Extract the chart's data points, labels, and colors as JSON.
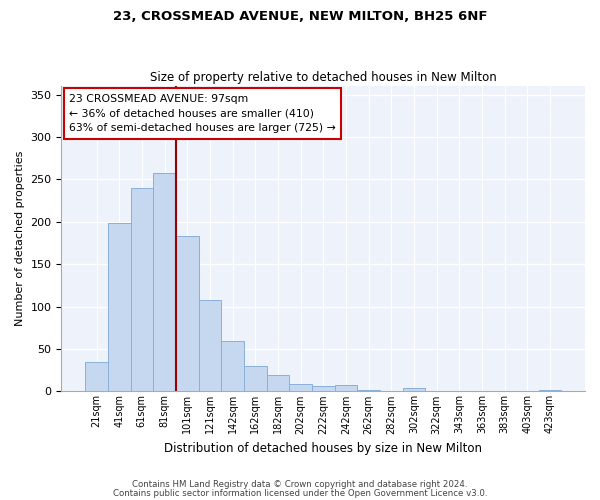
{
  "title1": "23, CROSSMEAD AVENUE, NEW MILTON, BH25 6NF",
  "title2": "Size of property relative to detached houses in New Milton",
  "xlabel": "Distribution of detached houses by size in New Milton",
  "ylabel": "Number of detached properties",
  "categories": [
    "21sqm",
    "41sqm",
    "61sqm",
    "81sqm",
    "101sqm",
    "121sqm",
    "142sqm",
    "162sqm",
    "182sqm",
    "202sqm",
    "222sqm",
    "242sqm",
    "262sqm",
    "282sqm",
    "302sqm",
    "322sqm",
    "343sqm",
    "363sqm",
    "383sqm",
    "403sqm",
    "423sqm"
  ],
  "values": [
    35,
    198,
    240,
    258,
    183,
    108,
    59,
    30,
    19,
    9,
    6,
    7,
    2,
    0,
    4,
    1,
    0,
    1,
    0,
    0,
    2
  ],
  "bar_color": "#c5d8f0",
  "bar_edgecolor": "#8ab0d8",
  "vline_x": 4.5,
  "vline_color": "#990000",
  "annotation_text": "23 CROSSMEAD AVENUE: 97sqm\n← 36% of detached houses are smaller (410)\n63% of semi-detached houses are larger (725) →",
  "annotation_box_edgecolor": "#cc0000",
  "background_color": "#eef2fb",
  "grid_color": "#ffffff",
  "footer1": "Contains HM Land Registry data © Crown copyright and database right 2024.",
  "footer2": "Contains public sector information licensed under the Open Government Licence v3.0.",
  "ylim": [
    0,
    360
  ],
  "yticks": [
    0,
    50,
    100,
    150,
    200,
    250,
    300,
    350
  ]
}
